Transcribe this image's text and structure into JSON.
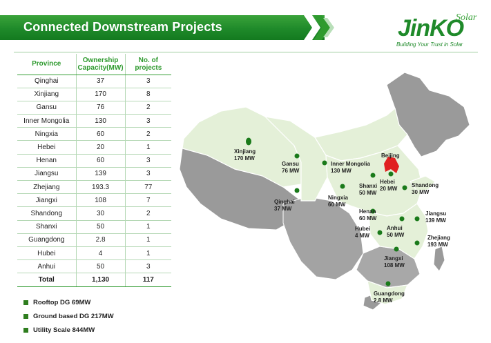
{
  "header": {
    "title": "Connected Downstream Projects"
  },
  "logo": {
    "main": "JinKO",
    "solar": "Solar",
    "tagline": "Building Your Trust in Solar"
  },
  "table": {
    "headers": {
      "province": "Province",
      "capacity": "Ownership Capacity(MW)",
      "projects": "No. of projects"
    },
    "rows": [
      {
        "province": "Qinghai",
        "capacity": "37",
        "projects": "3"
      },
      {
        "province": "Xinjiang",
        "capacity": "170",
        "projects": "8"
      },
      {
        "province": "Gansu",
        "capacity": "76",
        "projects": "2"
      },
      {
        "province": "Inner Mongolia",
        "capacity": "130",
        "projects": "3"
      },
      {
        "province": "Ningxia",
        "capacity": "60",
        "projects": "2"
      },
      {
        "province": "Hebei",
        "capacity": "20",
        "projects": "1"
      },
      {
        "province": "Henan",
        "capacity": "60",
        "projects": "3"
      },
      {
        "province": "Jiangsu",
        "capacity": "139",
        "projects": "3"
      },
      {
        "province": "Zhejiang",
        "capacity": "193.3",
        "projects": "77"
      },
      {
        "province": "Jiangxi",
        "capacity": "108",
        "projects": "7"
      },
      {
        "province": "Shandong",
        "capacity": "30",
        "projects": "2"
      },
      {
        "province": "Shanxi",
        "capacity": "50",
        "projects": "1"
      },
      {
        "province": "Guangdong",
        "capacity": "2.8",
        "projects": "1"
      },
      {
        "province": "Hubei",
        "capacity": "4",
        "projects": "1"
      },
      {
        "province": "Anhui",
        "capacity": "50",
        "projects": "3"
      }
    ],
    "total": {
      "province": "Total",
      "capacity": "1,130",
      "projects": "117"
    }
  },
  "legend": [
    "Rooftop DG 69MW",
    "Ground based DG  217MW",
    "Utility Scale  844MW"
  ],
  "map": {
    "capital": "Beijing",
    "labels": {
      "xinjiang": [
        "Xinjiang",
        "170 MW"
      ],
      "gansu": [
        "Gansu",
        "76 MW"
      ],
      "inner_mongolia": [
        "Inner Mongolia",
        "130 MW"
      ],
      "qinghai": [
        "Qinghai",
        "37 MW"
      ],
      "ningxia": [
        "Ningxia",
        "60 MW"
      ],
      "shanxi": [
        "Shanxi",
        "50 MW"
      ],
      "hebei": [
        "Hebei",
        "20 MW"
      ],
      "shandong": [
        "Shandong",
        "30 MW"
      ],
      "henan": [
        "Henan",
        "60 MW"
      ],
      "jiangsu": [
        "Jiangsu",
        "139 MW"
      ],
      "hubei": [
        "Hubei",
        "4 MW"
      ],
      "anhui": [
        "Anhui",
        "50 MW"
      ],
      "zhejiang": [
        "Zhejiang",
        "193 MW"
      ],
      "jiangxi": [
        "Jiangxi",
        "108 MW"
      ],
      "guangdong": [
        "Guangdong",
        "2.8 MW"
      ]
    }
  },
  "colors": {
    "accent_green": "#2e9a2e",
    "dot_green": "#1a7a1a",
    "capital_red": "#e02020",
    "map_light": "#e4f0d8",
    "map_gray": "#9a9a9a"
  }
}
